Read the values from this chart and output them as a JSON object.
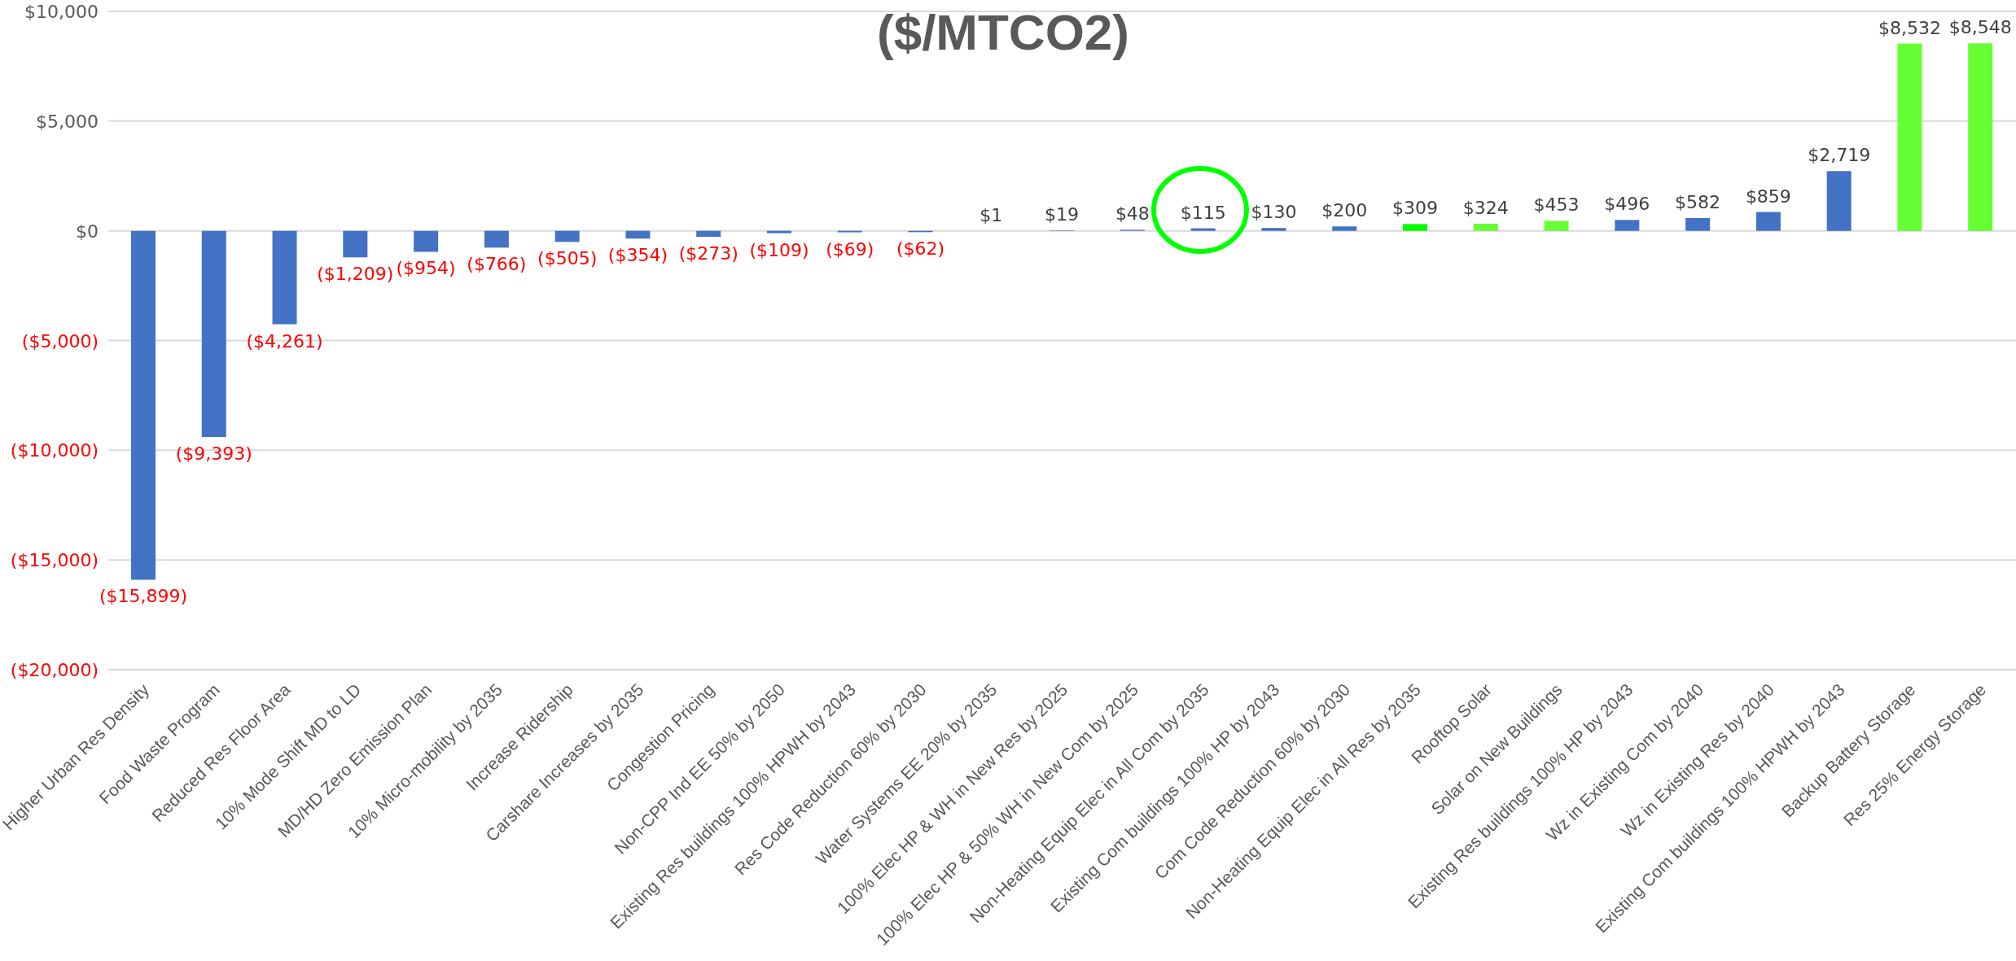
{
  "chart_data": {
    "type": "bar",
    "title": "($/MTCO2)",
    "categories": [
      "Higher Urban Res Density",
      "Food Waste Program",
      "Reduced Res Floor Area",
      "10% Mode Shift MD to LD",
      "MD/HD Zero Emission Plan",
      "10% Micro-mobility by 2035",
      "Increase Ridership",
      "Carshare Increases by 2035",
      "Congestion Pricing",
      "Non-CPP Ind EE 50% by 2050",
      "Existing Res buildings 100% HPWH by 2043",
      "Res Code Reduction 60% by 2030",
      "Water Systems EE 20% by 2035",
      "100% Elec HP & WH in New Res by 2025",
      "100% Elec HP & 50% WH in New Com by 2025",
      "Non-Heating Equip Elec in All Com by 2035",
      "Existing Com buildings 100% HP by 2043",
      "Com Code Reduction 60% by 2030",
      "Non-Heating Equip Elec in All Res by 2035",
      "Rooftop Solar",
      "Solar on New Buildings",
      "Existing Res buildings 100% HP by 2043",
      "Wz in Existing Com by 2040",
      "Wz in Existing Res by 2040",
      "Existing Com buildings 100% HPWH by 2043",
      "Backup Battery Storage",
      "Res 25% Energy Storage"
    ],
    "values": [
      -15899,
      -9393,
      -4261,
      -1209,
      -954,
      -766,
      -505,
      -354,
      -273,
      -109,
      -69,
      -62,
      1,
      19,
      48,
      115,
      130,
      200,
      309,
      324,
      453,
      496,
      582,
      859,
      2719,
      8532,
      8548
    ],
    "colors": [
      "#4472c4",
      "#4472c4",
      "#4472c4",
      "#4472c4",
      "#4472c4",
      "#4472c4",
      "#4472c4",
      "#4472c4",
      "#4472c4",
      "#4472c4",
      "#4472c4",
      "#4472c4",
      "#4472c4",
      "#4472c4",
      "#4472c4",
      "#4472c4",
      "#4472c4",
      "#4472c4",
      "#00ff00",
      "#66ff33",
      "#66ff33",
      "#4472c4",
      "#4472c4",
      "#4472c4",
      "#4472c4",
      "#66ff33",
      "#66ff33"
    ],
    "value_labels": [
      "($15,899)",
      "($9,393)",
      "($4,261)",
      "($1,209)",
      "($954)",
      "($766)",
      "($505)",
      "($354)",
      "($273)",
      "($109)",
      "($69)",
      "($62)",
      "$1",
      "$19",
      "$48",
      "$115",
      "$130",
      "$200",
      "$309",
      "$324",
      "$453",
      "$496",
      "$582",
      "$859",
      "$2,719",
      "$8,532",
      "$8,548"
    ],
    "ylim": [
      -20000,
      10000
    ],
    "yticks": [
      {
        "value": -20000,
        "label": "($20,000)"
      },
      {
        "value": -15000,
        "label": "($15,000)"
      },
      {
        "value": -10000,
        "label": "($10,000)"
      },
      {
        "value": -5000,
        "label": "($5,000)"
      },
      {
        "value": 0,
        "label": "$0"
      },
      {
        "value": 5000,
        "label": "$5,000"
      },
      {
        "value": 10000,
        "label": "$10,000"
      }
    ],
    "grid": "y"
  }
}
